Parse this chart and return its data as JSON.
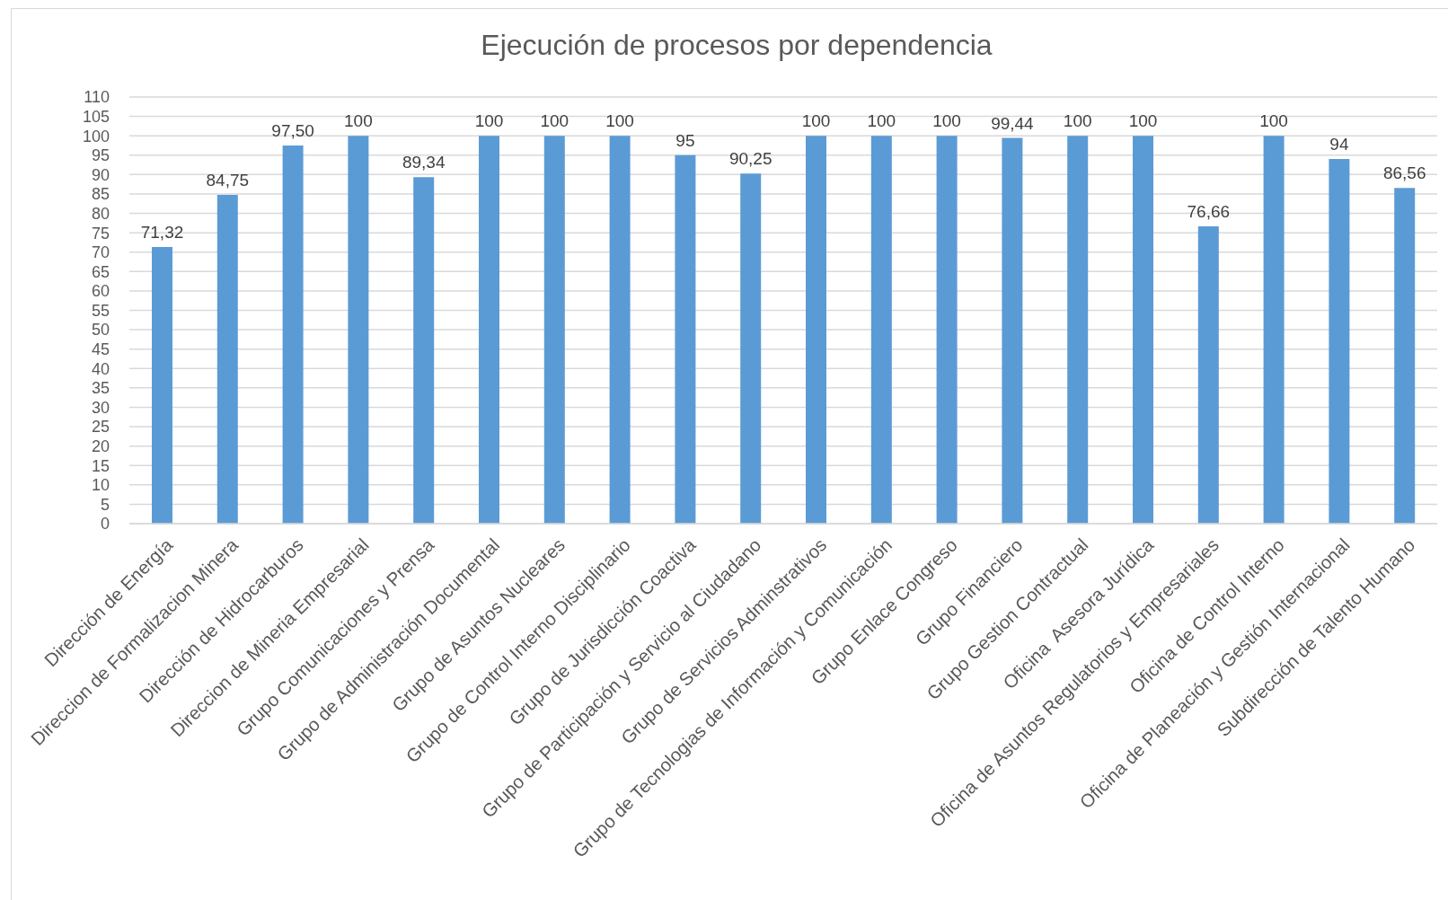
{
  "chart_data": {
    "type": "bar",
    "title": "Ejecución de procesos por dependencia",
    "categories": [
      "Dirección de Energía",
      "Direccion de Formalizacion Minera",
      "Dirección de Hidrocarburos",
      "Direccion de Mineria Empresarial",
      "Grupo Comunicaciones y Prensa",
      "Grupo de Administración Documental",
      "Grupo de Asuntos Nucleares",
      "Grupo de Control Interno Disciplinario",
      "Grupo de Jurisdicción Coactiva",
      "Grupo de Participación y Servicio al Ciudadano",
      "Grupo de Servicios Adminstrativos",
      "Grupo de Tecnologias de Información y Comunicación",
      "Grupo Enlace Congreso",
      "Grupo Financiero",
      "Grupo Gestion Contractual",
      "Oficina  Asesora Jurídica",
      "Oficina de Asuntos Regulatorios y Empresariales",
      "Oficina de Control Interno",
      "Oficina de Planeación y Gestión Internacional",
      "Subdirección de Talento Humano"
    ],
    "values": [
      71.32,
      84.75,
      97.5,
      100,
      89.34,
      100,
      100,
      100,
      95,
      90.25,
      100,
      100,
      100,
      99.44,
      100,
      100,
      76.66,
      100,
      94,
      86.56
    ],
    "value_labels": [
      "71,32",
      "84,75",
      "97,50",
      "100",
      "89,34",
      "100",
      "100",
      "100",
      "95",
      "90,25",
      "100",
      "100",
      "100",
      "99,44",
      "100",
      "100",
      "76,66",
      "100",
      "94",
      "86,56"
    ],
    "color": "#5b9bd5",
    "ylim": [
      0,
      110
    ],
    "yticks": [
      0,
      5,
      10,
      15,
      20,
      25,
      30,
      35,
      40,
      45,
      50,
      55,
      60,
      65,
      70,
      75,
      80,
      85,
      90,
      95,
      100,
      105,
      110
    ],
    "grid": "y"
  }
}
